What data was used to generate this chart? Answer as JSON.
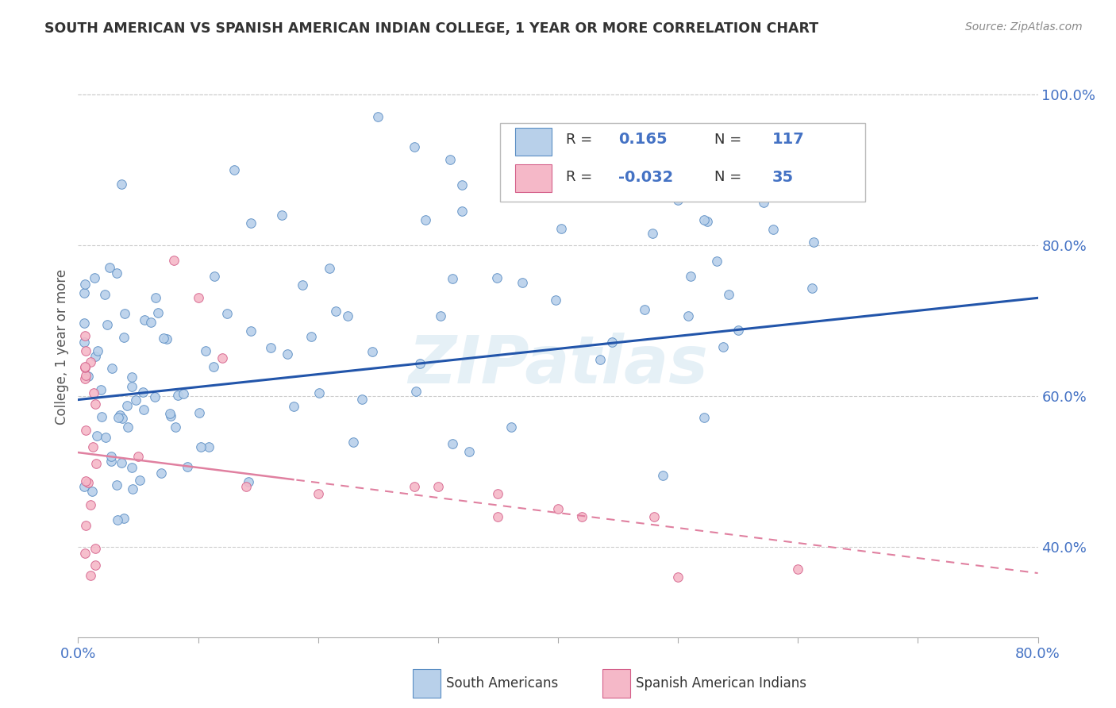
{
  "title": "SOUTH AMERICAN VS SPANISH AMERICAN INDIAN COLLEGE, 1 YEAR OR MORE CORRELATION CHART",
  "source": "Source: ZipAtlas.com",
  "ylabel": "College, 1 year or more",
  "right_yticks": [
    "40.0%",
    "60.0%",
    "80.0%",
    "100.0%"
  ],
  "right_ytick_vals": [
    0.4,
    0.6,
    0.8,
    1.0
  ],
  "r_blue": 0.165,
  "n_blue": 117,
  "r_pink": -0.032,
  "n_pink": 35,
  "blue_fill_color": "#b8d0ea",
  "blue_edge_color": "#5b8ec4",
  "pink_fill_color": "#f5b8c8",
  "pink_edge_color": "#d4608a",
  "blue_line_color": "#2255aa",
  "pink_line_color": "#e080a0",
  "watermark": "ZIPatlas",
  "xmin": 0.0,
  "xmax": 0.8,
  "ymin": 0.28,
  "ymax": 1.05,
  "legend_blue_r": "0.165",
  "legend_blue_n": "117",
  "legend_pink_r": "-0.032",
  "legend_pink_n": "35"
}
